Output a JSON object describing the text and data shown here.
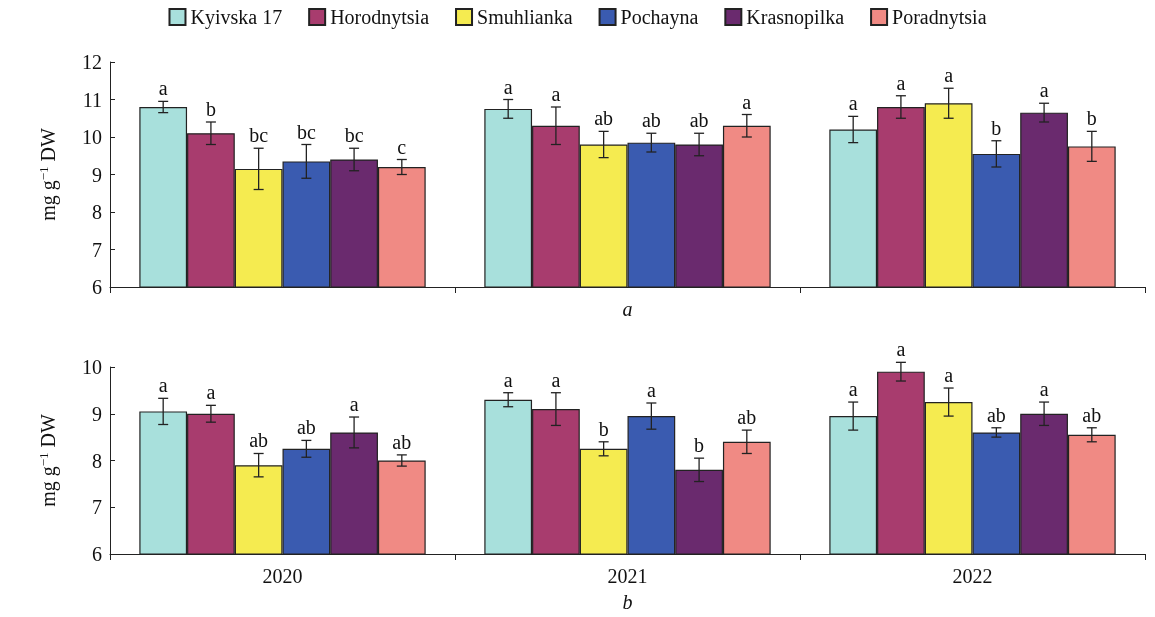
{
  "chart_data": [
    {
      "type": "bar",
      "xlabel": "a",
      "ylabel": "mg g$^{−1}$ DW",
      "categories": [
        "2020",
        "2021",
        "2022"
      ],
      "ylim": [
        6,
        12
      ],
      "yticks": [
        6,
        7,
        8,
        9,
        10,
        11,
        12
      ],
      "tick_labels": "y",
      "legend": "top",
      "grid": false,
      "series": [
        {
          "name": "Kyivska 17",
          "color": "#a8e0dc",
          "values": [
            10.8,
            10.75,
            10.2
          ],
          "errors": [
            0.15,
            0.25,
            0.35
          ],
          "value_labels": [
            "a",
            "a",
            "a"
          ]
        },
        {
          "name": "Horodnytsia",
          "color": "#a83c6e",
          "values": [
            10.1,
            10.3,
            10.8
          ],
          "errors": [
            0.3,
            0.5,
            0.3
          ],
          "value_labels": [
            "b",
            "a",
            "a"
          ]
        },
        {
          "name": "Smuhlianka",
          "color": "#f5eb50",
          "values": [
            9.15,
            9.8,
            10.9
          ],
          "errors": [
            0.55,
            0.35,
            0.4
          ],
          "value_labels": [
            "bc",
            "ab",
            "a"
          ]
        },
        {
          "name": "Pochayna",
          "color": "#3a5bb0",
          "values": [
            9.35,
            9.85,
            9.55
          ],
          "errors": [
            0.45,
            0.25,
            0.35
          ],
          "value_labels": [
            "bc",
            "ab",
            "b"
          ]
        },
        {
          "name": "Krasnopilka",
          "color": "#6a2a6e",
          "values": [
            9.4,
            9.8,
            10.65
          ],
          "errors": [
            0.3,
            0.3,
            0.25
          ],
          "value_labels": [
            "bc",
            "ab",
            "a"
          ]
        },
        {
          "name": "Poradnytsia",
          "color": "#f08a84",
          "values": [
            9.2,
            10.3,
            9.75
          ],
          "errors": [
            0.2,
            0.3,
            0.4
          ],
          "value_labels": [
            "c",
            "a",
            "b"
          ]
        }
      ]
    },
    {
      "type": "bar",
      "xlabel": "b",
      "ylabel": "mg g$^{−1}$ DW",
      "categories": [
        "2020",
        "2021",
        "2022"
      ],
      "ylim": [
        6,
        10
      ],
      "yticks": [
        6,
        7,
        8,
        9,
        10
      ],
      "grid": false,
      "series": [
        {
          "color": "#a8e0dc",
          "values": [
            9.05,
            9.3,
            8.95
          ],
          "errors": [
            0.28,
            0.15,
            0.3
          ],
          "value_labels": [
            "a",
            "a",
            "a"
          ]
        },
        {
          "color": "#a83c6e",
          "values": [
            9.0,
            9.1,
            9.9
          ],
          "errors": [
            0.18,
            0.35,
            0.2
          ],
          "value_labels": [
            "a",
            "a",
            "a"
          ]
        },
        {
          "color": "#f5eb50",
          "values": [
            7.9,
            8.25,
            9.25
          ],
          "errors": [
            0.25,
            0.15,
            0.3
          ],
          "value_labels": [
            "ab",
            "b",
            "a"
          ]
        },
        {
          "color": "#3a5bb0",
          "values": [
            8.25,
            8.95,
            8.6
          ],
          "errors": [
            0.18,
            0.28,
            0.1
          ],
          "value_labels": [
            "ab",
            "a",
            "ab"
          ]
        },
        {
          "color": "#6a2a6e",
          "values": [
            8.6,
            7.8,
            9.0
          ],
          "errors": [
            0.33,
            0.25,
            0.25
          ],
          "value_labels": [
            "a",
            "b",
            "a"
          ]
        },
        {
          "color": "#f08a84",
          "values": [
            8.0,
            8.4,
            8.55
          ],
          "errors": [
            0.12,
            0.25,
            0.15
          ],
          "value_labels": [
            "ab",
            "ab",
            "ab"
          ]
        }
      ]
    }
  ]
}
